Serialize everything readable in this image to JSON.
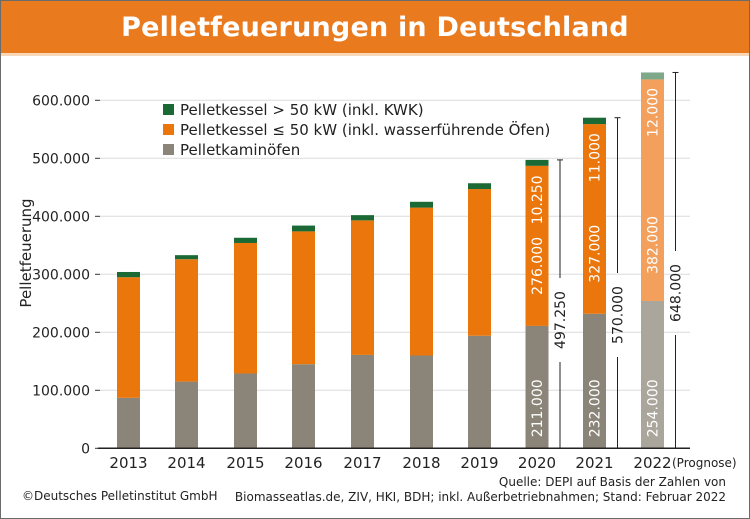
{
  "header": {
    "title": "Pelletfeuerungen in Deutschland"
  },
  "footer": {
    "copyright": "©Deutsches Pelletinstitut GmbH",
    "source_line1": "Quelle: DEPI auf Basis der Zahlen von",
    "source_line2": "Biomasseatlas.de, ZIV, HKI, BDH; inkl. Außerbetriebnahmen; Stand: Februar 2022"
  },
  "chart_data": {
    "type": "bar",
    "stacked": true,
    "title": "Pelletfeuerungen in Deutschland",
    "xlabel": "",
    "ylabel": "Pelletfeuerung",
    "ylim": [
      0,
      650000
    ],
    "yticks": [
      0,
      100000,
      200000,
      300000,
      400000,
      500000,
      600000
    ],
    "ytick_labels": [
      "0",
      "100.000",
      "200.000",
      "300.000",
      "400.000",
      "500.000",
      "600.000"
    ],
    "grid": true,
    "legend_position": "top-left",
    "categories": [
      "2013",
      "2014",
      "2015",
      "2016",
      "2017",
      "2018",
      "2019",
      "2020",
      "2021",
      "2022"
    ],
    "category_note": {
      "2022": "(Prognose)"
    },
    "series": [
      {
        "name": "Pelletkaminöfen",
        "color": "#8a8578",
        "forecast_color": "#aaa69c",
        "values": [
          87000,
          115000,
          129000,
          145000,
          161000,
          160000,
          194000,
          211000,
          232000,
          254000
        ],
        "labels": {
          "2020": "211.000",
          "2021": "232.000",
          "2022": "254.000"
        }
      },
      {
        "name": "Pelletkessel ≤ 50 kW (inkl. wasserführende Öfen)",
        "color": "#ea760c",
        "forecast_color": "#f3a05c",
        "values": [
          208000,
          211000,
          225000,
          229000,
          232000,
          255000,
          253000,
          276000,
          327000,
          382000
        ],
        "labels": {
          "2020": "276.000",
          "2021": "327.000",
          "2022": "382.000"
        }
      },
      {
        "name": "Pelletkessel > 50 kW (inkl. KWK)",
        "color": "#1b6a35",
        "forecast_color": "#7ea88a",
        "values": [
          9000,
          7000,
          9000,
          10000,
          9000,
          10000,
          10000,
          10250,
          11000,
          12000
        ],
        "labels": {
          "2020": "10.250",
          "2021": "11.000",
          "2022": "12.000"
        }
      }
    ],
    "totals": {
      "2020": "497.250",
      "2021": "570.000",
      "2022": "648.000"
    },
    "forecast_category": "2022"
  }
}
